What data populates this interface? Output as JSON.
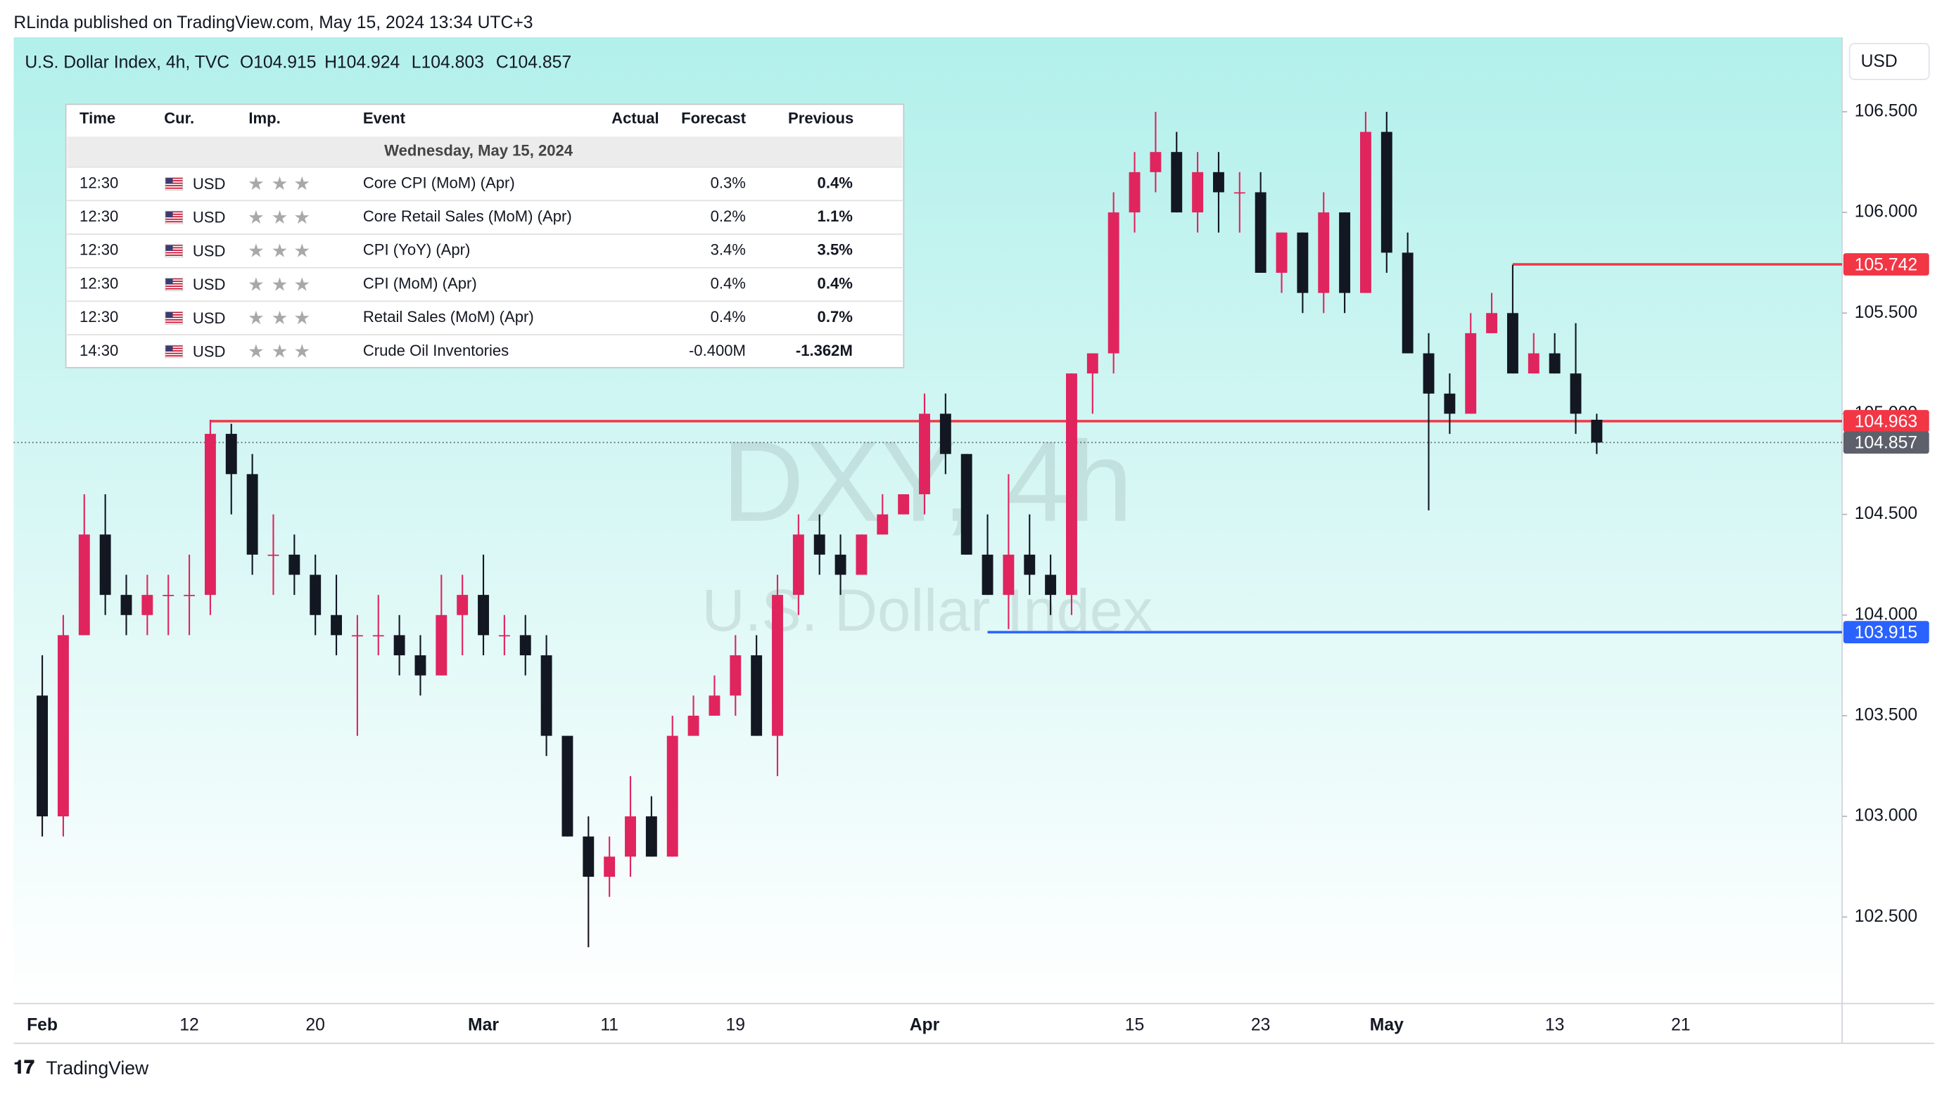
{
  "header": {
    "title": "RLinda published on TradingView.com, May 15, 2024 13:34 UTC+3",
    "currency_button": "USD",
    "brand": "TradingView"
  },
  "chart_data": {
    "type": "candlestick",
    "legend": {
      "symbol": "U.S. Dollar Index, 4h, TVC",
      "open": {
        "value": 104.915,
        "label": "O104.915"
      },
      "high": {
        "value": 104.924,
        "label": "H104.924"
      },
      "low": {
        "value": 104.803,
        "label": "L104.803"
      },
      "close": {
        "value": 104.857,
        "label": "C104.857"
      }
    },
    "watermark": {
      "ticker": "DXY, 4h",
      "name": "U.S. Dollar Index"
    },
    "up_color": "#e0245e",
    "down_color": "#131722",
    "categories": [
      "Feb",
      null,
      null,
      null,
      null,
      null,
      null,
      "12",
      null,
      null,
      null,
      null,
      null,
      "20",
      null,
      null,
      null,
      null,
      null,
      null,
      null,
      "Mar",
      null,
      null,
      null,
      null,
      null,
      "11",
      null,
      null,
      null,
      null,
      null,
      "19",
      null,
      null,
      null,
      null,
      null,
      null,
      null,
      null,
      "Apr",
      null,
      null,
      null,
      null,
      null,
      null,
      null,
      null,
      null,
      "15",
      null,
      null,
      null,
      null,
      null,
      "23",
      null,
      null,
      null,
      null,
      null,
      "May",
      null,
      null,
      null,
      null,
      null,
      null,
      null,
      "13",
      null,
      null,
      null,
      null,
      null,
      "21",
      null,
      null,
      null,
      null,
      null,
      null,
      null
    ],
    "open": [
      103.6,
      103.0,
      103.9,
      104.4,
      104.1,
      104.0,
      104.1,
      104.1,
      104.1,
      104.9,
      104.7,
      104.3,
      104.3,
      104.2,
      104.0,
      103.9,
      103.9,
      103.9,
      103.8,
      103.7,
      104.0,
      104.1,
      103.9,
      103.9,
      103.8,
      103.4,
      102.9,
      102.7,
      102.8,
      103.0,
      102.8,
      103.4,
      103.5,
      103.6,
      103.8,
      103.4,
      104.1,
      104.4,
      104.3,
      104.2,
      104.4,
      104.5,
      104.6,
      105.0,
      104.8,
      104.3,
      104.1,
      104.3,
      104.2,
      104.1,
      105.2,
      105.3,
      106.0,
      106.2,
      106.3,
      106.0,
      106.2,
      106.1,
      106.1,
      105.7,
      105.9,
      105.6,
      106.0,
      105.6,
      106.4,
      105.8,
      105.3,
      105.1,
      105.0,
      105.4,
      105.5,
      105.2,
      105.3,
      105.2,
      104.97,
      null,
      null,
      null,
      null,
      null,
      null,
      null,
      null,
      null,
      null,
      null
    ],
    "high": [
      103.8,
      104.0,
      104.6,
      104.6,
      104.2,
      104.2,
      104.2,
      104.3,
      104.97,
      104.95,
      104.8,
      104.5,
      104.4,
      104.3,
      104.2,
      104.0,
      104.1,
      104.0,
      103.9,
      104.2,
      104.2,
      104.3,
      104.0,
      104.0,
      103.9,
      103.4,
      103.0,
      102.9,
      103.2,
      103.1,
      103.5,
      103.6,
      103.7,
      103.9,
      103.9,
      104.2,
      104.5,
      104.5,
      104.4,
      104.4,
      104.6,
      104.6,
      105.1,
      105.1,
      104.8,
      104.5,
      104.7,
      104.5,
      104.3,
      105.2,
      105.3,
      106.1,
      106.3,
      106.5,
      106.4,
      106.3,
      106.3,
      106.2,
      106.2,
      105.9,
      105.9,
      106.1,
      106.0,
      106.5,
      106.5,
      105.9,
      105.4,
      105.2,
      105.5,
      105.6,
      105.74,
      105.4,
      105.4,
      105.45,
      105.0,
      null,
      null,
      null,
      null,
      null,
      null,
      null,
      null,
      null,
      null,
      null
    ],
    "low": [
      102.9,
      102.9,
      103.9,
      104.0,
      103.9,
      103.9,
      103.9,
      103.9,
      104.0,
      104.5,
      104.2,
      104.1,
      104.1,
      103.9,
      103.8,
      103.4,
      103.8,
      103.7,
      103.6,
      103.7,
      103.8,
      103.8,
      103.8,
      103.7,
      103.3,
      102.9,
      102.35,
      102.6,
      102.7,
      102.8,
      102.8,
      103.4,
      103.5,
      103.5,
      103.4,
      103.2,
      104.0,
      104.2,
      104.1,
      104.2,
      104.4,
      104.5,
      104.5,
      104.7,
      104.3,
      104.1,
      103.93,
      104.1,
      104.0,
      104.0,
      105.0,
      105.2,
      105.9,
      106.1,
      106.0,
      105.9,
      105.9,
      105.9,
      105.7,
      105.6,
      105.5,
      105.5,
      105.5,
      105.6,
      105.7,
      105.3,
      104.52,
      104.9,
      105.0,
      105.4,
      105.2,
      105.2,
      105.2,
      104.9,
      104.8,
      null,
      null,
      null,
      null,
      null,
      null,
      null,
      null,
      null,
      null,
      null
    ],
    "close": [
      103.0,
      103.9,
      104.4,
      104.1,
      104.0,
      104.1,
      104.1,
      104.1,
      104.9,
      104.7,
      104.3,
      104.3,
      104.2,
      104.0,
      103.9,
      103.9,
      103.9,
      103.8,
      103.7,
      104.0,
      104.1,
      103.9,
      103.9,
      103.8,
      103.4,
      102.9,
      102.7,
      102.8,
      103.0,
      102.8,
      103.4,
      103.5,
      103.6,
      103.8,
      103.4,
      104.1,
      104.4,
      104.3,
      104.2,
      104.4,
      104.5,
      104.6,
      105.0,
      104.8,
      104.3,
      104.1,
      104.3,
      104.2,
      104.1,
      105.2,
      105.3,
      106.0,
      106.2,
      106.3,
      106.0,
      106.2,
      106.1,
      106.1,
      105.7,
      105.9,
      105.6,
      106.0,
      105.6,
      106.4,
      105.8,
      105.3,
      105.1,
      105.0,
      105.4,
      105.5,
      105.2,
      105.3,
      105.2,
      105.0,
      104.857,
      null,
      null,
      null,
      null,
      null,
      null,
      null,
      null,
      null,
      null,
      null
    ],
    "levels": [
      {
        "value": 105.742,
        "color": "#f23645"
      },
      {
        "value": 104.963,
        "color": "#f23645"
      },
      {
        "value": 103.915,
        "color": "#2962ff"
      },
      {
        "value": 104.857,
        "color": "#5d606b",
        "style": "dotted"
      }
    ],
    "ylim": [
      102.07,
      106.87
    ],
    "yticks": [
      {
        "value": 102.5,
        "label": "102.500"
      },
      {
        "value": 103,
        "label": "103.000"
      },
      {
        "value": 103.5,
        "label": "103.500"
      },
      {
        "value": 104,
        "label": "104.000"
      },
      {
        "value": 104.5,
        "label": "104.500"
      },
      {
        "value": 105,
        "label": "105.000"
      },
      {
        "value": 105.5,
        "label": "105.500"
      },
      {
        "value": 106,
        "label": "106.000"
      },
      {
        "value": 106.5,
        "label": "106.500"
      }
    ]
  },
  "calendar": {
    "columns": [
      "Time",
      "Cur.",
      "Imp.",
      "Event",
      "Actual",
      "Forecast",
      "Previous"
    ],
    "date": "Wednesday, May 15, 2024",
    "rows": [
      {
        "time": "12:30",
        "currency": "USD",
        "event": "Core CPI (MoM) (Apr)",
        "forecast": "0.3%",
        "previous": "0.4%"
      },
      {
        "time": "12:30",
        "currency": "USD",
        "event": "Core Retail Sales (MoM) (Apr)",
        "forecast": "0.2%",
        "previous": "1.1%"
      },
      {
        "time": "12:30",
        "currency": "USD",
        "event": "CPI (YoY) (Apr)",
        "forecast": "3.4%",
        "previous": "3.5%"
      },
      {
        "time": "12:30",
        "currency": "USD",
        "event": "CPI (MoM) (Apr)",
        "forecast": "0.4%",
        "previous": "0.4%"
      },
      {
        "time": "12:30",
        "currency": "USD",
        "event": "Retail Sales (MoM) (Apr)",
        "forecast": "0.4%",
        "previous": "0.7%"
      },
      {
        "time": "14:30",
        "currency": "USD",
        "event": "Crude Oil Inventories",
        "forecast": "-0.400M",
        "previous": "-1.362M"
      }
    ]
  }
}
